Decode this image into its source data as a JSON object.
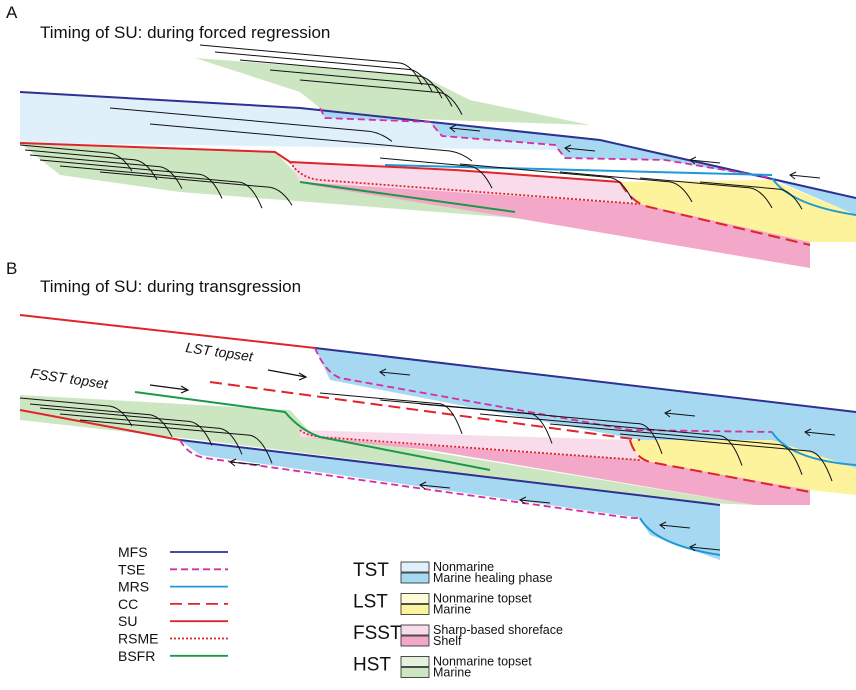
{
  "panels": [
    {
      "letter": "A",
      "title": "Timing of SU: during forced regression"
    },
    {
      "letter": "B",
      "title": "Timing of SU: during transgression",
      "annotations": [
        "FSST topset",
        "LST topset"
      ]
    }
  ],
  "line_legend": [
    "MFS",
    "TSE",
    "MRS",
    "CC",
    "SU",
    "RSME",
    "BSFR"
  ],
  "box_legend": [
    {
      "name": "TST",
      "items": [
        "Nonmarine",
        "Marine healing phase"
      ]
    },
    {
      "name": "LST",
      "items": [
        "Nonmarine topset",
        "Marine"
      ]
    },
    {
      "name": "FSST",
      "items": [
        "Sharp-based shoreface",
        "Shelf"
      ]
    },
    {
      "name": "HST",
      "items": [
        "Nonmarine topset",
        "Marine"
      ]
    }
  ]
}
